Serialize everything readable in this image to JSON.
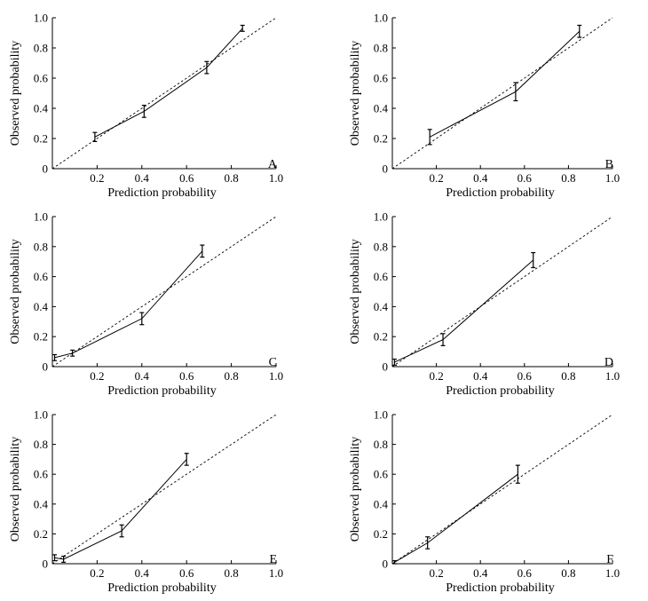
{
  "chart_data": [
    {
      "type": "line",
      "panel_label": "A",
      "xlabel": "Prediction probability",
      "ylabel": "Observed probability",
      "xlim": [
        0,
        1.0
      ],
      "ylim": [
        0,
        1.0
      ],
      "xticks": [
        {
          "v": 0.2,
          "label": "0.2"
        },
        {
          "v": 0.4,
          "label": "0.4"
        },
        {
          "v": 0.6,
          "label": "0.6"
        },
        {
          "v": 0.8,
          "label": "0.8"
        },
        {
          "v": 1.0,
          "label": "1.0"
        }
      ],
      "yticks": [
        {
          "v": 0,
          "label": "0"
        },
        {
          "v": 0.2,
          "label": "0.2"
        },
        {
          "v": 0.4,
          "label": "0.4"
        },
        {
          "v": 0.6,
          "label": "0.6"
        },
        {
          "v": 0.8,
          "label": "0.8"
        },
        {
          "v": 1.0,
          "label": "1.0"
        }
      ],
      "reference_line": "dashed diagonal",
      "points": [
        {
          "x": 0.19,
          "y": 0.21,
          "err": 0.03
        },
        {
          "x": 0.41,
          "y": 0.38,
          "err": 0.04
        },
        {
          "x": 0.69,
          "y": 0.67,
          "err": 0.04
        },
        {
          "x": 0.85,
          "y": 0.93,
          "err": 0.02
        }
      ]
    },
    {
      "type": "line",
      "panel_label": "B",
      "xlabel": "Prediction probability",
      "ylabel": "Observed probability",
      "xlim": [
        0,
        1.0
      ],
      "ylim": [
        0,
        1.0
      ],
      "xticks": [
        {
          "v": 0.2,
          "label": "0.2"
        },
        {
          "v": 0.4,
          "label": "0.4"
        },
        {
          "v": 0.6,
          "label": "0.6"
        },
        {
          "v": 0.8,
          "label": "0.8"
        },
        {
          "v": 1.0,
          "label": "1.0"
        }
      ],
      "yticks": [
        {
          "v": 0,
          "label": "0"
        },
        {
          "v": 0.2,
          "label": "0.2"
        },
        {
          "v": 0.4,
          "label": "0.4"
        },
        {
          "v": 0.6,
          "label": "0.6"
        },
        {
          "v": 0.8,
          "label": "0.8"
        },
        {
          "v": 1.0,
          "label": "1.0"
        }
      ],
      "reference_line": "dashed diagonal",
      "points": [
        {
          "x": 0.17,
          "y": 0.21,
          "err": 0.05
        },
        {
          "x": 0.56,
          "y": 0.51,
          "err": 0.06
        },
        {
          "x": 0.85,
          "y": 0.91,
          "err": 0.04
        }
      ]
    },
    {
      "type": "line",
      "panel_label": "C",
      "xlabel": "Prediction probability",
      "ylabel": "Observed probability",
      "xlim": [
        0,
        1.0
      ],
      "ylim": [
        0,
        1.0
      ],
      "xticks": [
        {
          "v": 0.2,
          "label": "0.2"
        },
        {
          "v": 0.4,
          "label": "0.4"
        },
        {
          "v": 0.6,
          "label": "0.6"
        },
        {
          "v": 0.8,
          "label": "0.8"
        },
        {
          "v": 1.0,
          "label": "1.0"
        }
      ],
      "yticks": [
        {
          "v": 0,
          "label": "0"
        },
        {
          "v": 0.2,
          "label": "0.2"
        },
        {
          "v": 0.4,
          "label": "0.4"
        },
        {
          "v": 0.6,
          "label": "0.6"
        },
        {
          "v": 0.8,
          "label": "0.8"
        },
        {
          "v": 1.0,
          "label": "1.0"
        }
      ],
      "reference_line": "dashed diagonal",
      "points": [
        {
          "x": 0.01,
          "y": 0.06,
          "err": 0.02
        },
        {
          "x": 0.09,
          "y": 0.09,
          "err": 0.02
        },
        {
          "x": 0.4,
          "y": 0.32,
          "err": 0.04
        },
        {
          "x": 0.67,
          "y": 0.77,
          "err": 0.04
        }
      ]
    },
    {
      "type": "line",
      "panel_label": "D",
      "xlabel": "Prediction probability",
      "ylabel": "Observed probability",
      "xlim": [
        0,
        1.0
      ],
      "ylim": [
        0,
        1.0
      ],
      "xticks": [
        {
          "v": 0.2,
          "label": "0.2"
        },
        {
          "v": 0.4,
          "label": "0.4"
        },
        {
          "v": 0.6,
          "label": "0.6"
        },
        {
          "v": 0.8,
          "label": "0.8"
        },
        {
          "v": 1.0,
          "label": "1.0"
        }
      ],
      "yticks": [
        {
          "v": 0,
          "label": "0"
        },
        {
          "v": 0.2,
          "label": "0.2"
        },
        {
          "v": 0.4,
          "label": "0.4"
        },
        {
          "v": 0.6,
          "label": "0.6"
        },
        {
          "v": 0.8,
          "label": "0.8"
        },
        {
          "v": 1.0,
          "label": "1.0"
        }
      ],
      "reference_line": "dashed diagonal",
      "points": [
        {
          "x": 0.01,
          "y": 0.03,
          "err": 0.02
        },
        {
          "x": 0.23,
          "y": 0.18,
          "err": 0.04
        },
        {
          "x": 0.64,
          "y": 0.71,
          "err": 0.05
        }
      ]
    },
    {
      "type": "line",
      "panel_label": "E",
      "xlabel": "Prediction probability",
      "ylabel": "Observed probability",
      "xlim": [
        0,
        1.0
      ],
      "ylim": [
        0,
        1.0
      ],
      "xticks": [
        {
          "v": 0.2,
          "label": "0.2"
        },
        {
          "v": 0.4,
          "label": "0.4"
        },
        {
          "v": 0.6,
          "label": "0.6"
        },
        {
          "v": 0.8,
          "label": "0.8"
        },
        {
          "v": 1.0,
          "label": "1.0"
        }
      ],
      "yticks": [
        {
          "v": 0,
          "label": "0"
        },
        {
          "v": 0.2,
          "label": "0.2"
        },
        {
          "v": 0.4,
          "label": "0.4"
        },
        {
          "v": 0.6,
          "label": "0.6"
        },
        {
          "v": 0.8,
          "label": "0.8"
        },
        {
          "v": 1.0,
          "label": "1.0"
        }
      ],
      "reference_line": "dashed diagonal",
      "points": [
        {
          "x": 0.01,
          "y": 0.04,
          "err": 0.02
        },
        {
          "x": 0.05,
          "y": 0.03,
          "err": 0.02
        },
        {
          "x": 0.31,
          "y": 0.22,
          "err": 0.04
        },
        {
          "x": 0.6,
          "y": 0.7,
          "err": 0.04
        }
      ]
    },
    {
      "type": "line",
      "panel_label": "F",
      "xlabel": "Prediction probability",
      "ylabel": "Observed probability",
      "xlim": [
        0,
        1.0
      ],
      "ylim": [
        0,
        1.0
      ],
      "xticks": [
        {
          "v": 0.2,
          "label": "0.2"
        },
        {
          "v": 0.4,
          "label": "0.4"
        },
        {
          "v": 0.6,
          "label": "0.6"
        },
        {
          "v": 0.8,
          "label": "0.8"
        },
        {
          "v": 1.0,
          "label": "1.0"
        }
      ],
      "yticks": [
        {
          "v": 0,
          "label": "0"
        },
        {
          "v": 0.2,
          "label": "0.2"
        },
        {
          "v": 0.4,
          "label": "0.4"
        },
        {
          "v": 0.6,
          "label": "0.6"
        },
        {
          "v": 0.8,
          "label": "0.8"
        },
        {
          "v": 1.0,
          "label": "1.0"
        }
      ],
      "reference_line": "dashed diagonal",
      "points": [
        {
          "x": 0.01,
          "y": 0.01,
          "err": 0.01
        },
        {
          "x": 0.16,
          "y": 0.14,
          "err": 0.04
        },
        {
          "x": 0.57,
          "y": 0.6,
          "err": 0.06
        }
      ]
    }
  ]
}
